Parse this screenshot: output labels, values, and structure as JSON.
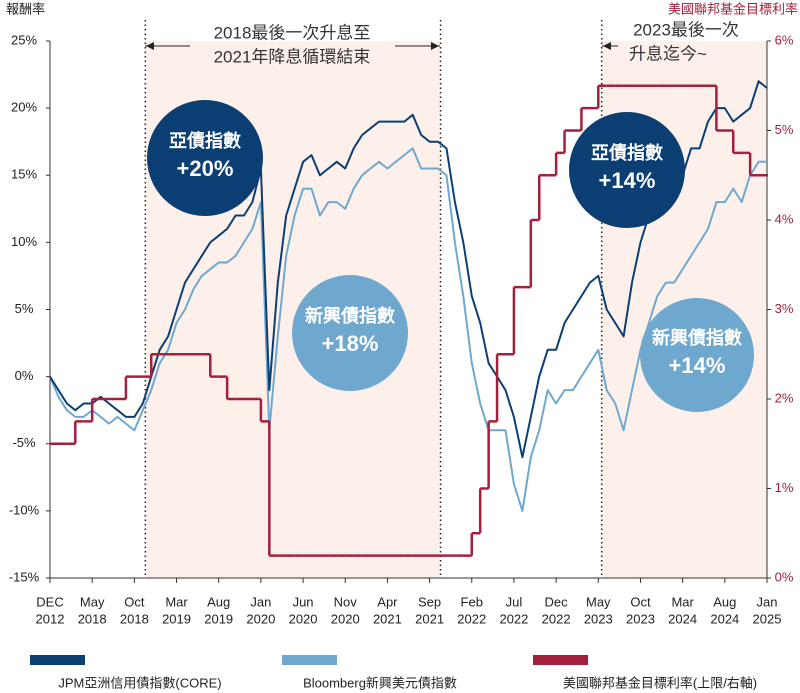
{
  "chart_data": {
    "type": "line",
    "y_label": "報酬率",
    "y2_label": "美國聯邦基金目標利率",
    "x": [
      0,
      1,
      2,
      3,
      4,
      5,
      6,
      7,
      8,
      9,
      10,
      11,
      12,
      13,
      14,
      15,
      16,
      17,
      18,
      19,
      20,
      21,
      22,
      23,
      24,
      25,
      26,
      27,
      28,
      29,
      30,
      31,
      32,
      33,
      34,
      35,
      36,
      37,
      38,
      39,
      40,
      41,
      42,
      43,
      44,
      45,
      46,
      47,
      48,
      49,
      50,
      51,
      52,
      53,
      54,
      55,
      56,
      57,
      58,
      59,
      60,
      61,
      62,
      63,
      64,
      65,
      66,
      67,
      68,
      69,
      70,
      71,
      72,
      73,
      74,
      75,
      76,
      77,
      78,
      79,
      80,
      81,
      82,
      83,
      84,
      85
    ],
    "xlim": [
      0,
      85
    ],
    "xticks": [
      {
        "value": 0,
        "label": [
          "DEC",
          "2012"
        ]
      },
      {
        "value": 5,
        "label": [
          "May",
          "2018"
        ]
      },
      {
        "value": 10,
        "label": [
          "Oct",
          "2018"
        ]
      },
      {
        "value": 15,
        "label": [
          "Mar",
          "2019"
        ]
      },
      {
        "value": 20,
        "label": [
          "Aug",
          "2019"
        ]
      },
      {
        "value": 25,
        "label": [
          "Jan",
          "2020"
        ]
      },
      {
        "value": 30,
        "label": [
          "Jun",
          "2020"
        ]
      },
      {
        "value": 35,
        "label": [
          "Nov",
          "2020"
        ]
      },
      {
        "value": 40,
        "label": [
          "Apr",
          "2021"
        ]
      },
      {
        "value": 45,
        "label": [
          "Sep",
          "2021"
        ]
      },
      {
        "value": 50,
        "label": [
          "Feb",
          "2022"
        ]
      },
      {
        "value": 55,
        "label": [
          "Jul",
          "2022"
        ]
      },
      {
        "value": 60,
        "label": [
          "Dec",
          "2022"
        ]
      },
      {
        "value": 65,
        "label": [
          "May",
          "2023"
        ]
      },
      {
        "value": 70,
        "label": [
          "Oct",
          "2023"
        ]
      },
      {
        "value": 75,
        "label": [
          "Mar",
          "2024"
        ]
      },
      {
        "value": 80,
        "label": [
          "Aug",
          "2024"
        ]
      },
      {
        "value": 85,
        "label": [
          "Jan",
          "2025"
        ]
      }
    ],
    "ylim": [
      -15,
      25
    ],
    "yticks": [
      {
        "value": 25,
        "label": "25%"
      },
      {
        "value": 20,
        "label": "20%"
      },
      {
        "value": 15,
        "label": "15%"
      },
      {
        "value": 10,
        "label": "10%"
      },
      {
        "value": 5,
        "label": "5%"
      },
      {
        "value": 0,
        "label": "0%"
      },
      {
        "value": -5,
        "label": "-5%"
      },
      {
        "value": -10,
        "label": "-10%"
      },
      {
        "value": -15,
        "label": "-15%"
      }
    ],
    "y2lim": [
      0,
      6
    ],
    "y2ticks": [
      {
        "value": 6,
        "label": "6%"
      },
      {
        "value": 5,
        "label": "5%"
      },
      {
        "value": 4,
        "label": "4%"
      },
      {
        "value": 3,
        "label": "3%"
      },
      {
        "value": 2,
        "label": "2%"
      },
      {
        "value": 1,
        "label": "1%"
      },
      {
        "value": 0,
        "label": "0%"
      }
    ],
    "highlight_ranges": [
      [
        11.3,
        46.3
      ],
      [
        65.4,
        85
      ]
    ],
    "series": [
      {
        "name": "JPM亞洲信用債指數(CORE)",
        "color": "#0b3f73",
        "values": [
          0,
          -1,
          -2,
          -2.5,
          -2,
          -2,
          -1.5,
          -2,
          -2.5,
          -3,
          -3,
          -2,
          0,
          2,
          3,
          5,
          7,
          8,
          9,
          10,
          10.5,
          11,
          12,
          12,
          13,
          15.5,
          -1,
          7,
          12,
          14,
          16,
          16.5,
          15,
          15.5,
          16,
          15.5,
          17,
          18,
          18.5,
          19,
          19,
          19,
          19,
          19.5,
          18,
          17.5,
          17.5,
          17,
          13,
          10,
          6,
          4,
          1,
          0,
          -1,
          -3,
          -6,
          -3,
          0,
          2,
          2,
          4,
          5,
          6,
          7,
          7.5,
          5,
          4,
          3,
          7,
          10,
          12,
          13,
          13,
          15,
          15,
          17,
          17,
          19,
          20,
          20,
          19,
          19.5,
          20,
          22,
          21.5
        ]
      },
      {
        "name": "Bloomberg新興美元債指數",
        "color": "#6fa8cf",
        "values": [
          0,
          -1.5,
          -2.5,
          -3,
          -3,
          -2.5,
          -3,
          -3.5,
          -3,
          -3.5,
          -4,
          -2.5,
          -1,
          1,
          2,
          4,
          5,
          6.5,
          7.5,
          8,
          8.5,
          8.5,
          9,
          10,
          11,
          13,
          -4,
          3,
          9,
          12,
          14,
          14,
          12,
          13,
          13,
          12.5,
          14,
          15,
          15.5,
          16,
          15.5,
          16,
          16.5,
          17,
          15.5,
          15.5,
          15.5,
          15,
          10,
          6,
          1,
          -2,
          -4,
          -4,
          -4,
          -8,
          -10,
          -6,
          -4,
          -1,
          -2,
          -1,
          -1,
          0,
          1,
          2,
          -1,
          -2,
          -4,
          -1,
          2,
          4,
          6,
          7,
          7,
          8,
          9,
          10,
          11,
          13,
          13,
          14,
          13,
          15,
          16,
          16
        ]
      },
      {
        "name": "美國聯邦基金目標利率(上限/右軸)",
        "color": "#a31f3b",
        "axis": "y2",
        "step": true,
        "values": [
          1.5,
          1.5,
          1.5,
          1.75,
          1.75,
          2,
          2,
          2,
          2,
          2.25,
          2.25,
          2.25,
          2.5,
          2.5,
          2.5,
          2.5,
          2.5,
          2.5,
          2.5,
          2.25,
          2.25,
          2,
          2,
          2,
          2,
          1.75,
          0.25,
          0.25,
          0.25,
          0.25,
          0.25,
          0.25,
          0.25,
          0.25,
          0.25,
          0.25,
          0.25,
          0.25,
          0.25,
          0.25,
          0.25,
          0.25,
          0.25,
          0.25,
          0.25,
          0.25,
          0.25,
          0.25,
          0.25,
          0.25,
          0.5,
          1,
          1.75,
          2.5,
          2.5,
          3.25,
          3.25,
          4,
          4.5,
          4.5,
          4.75,
          5,
          5,
          5.25,
          5.25,
          5.5,
          5.5,
          5.5,
          5.5,
          5.5,
          5.5,
          5.5,
          5.5,
          5.5,
          5.5,
          5.5,
          5.5,
          5.5,
          5.5,
          5,
          5,
          4.75,
          4.75,
          4.5,
          4.5,
          4.5
        ]
      }
    ],
    "annotations": [
      {
        "lines": [
          "2018最後一次升息至",
          "2021年降息循環結束"
        ]
      },
      {
        "lines": [
          "2023最後一次",
          "升息迄今~"
        ]
      }
    ],
    "callouts": [
      {
        "name": "亞債指數",
        "value": "+20%"
      },
      {
        "name": "新興債指數",
        "value": "+18%"
      },
      {
        "name": "亞債指數",
        "value": "+14%"
      },
      {
        "name": "新興債指數",
        "value": "+14%"
      }
    ]
  }
}
